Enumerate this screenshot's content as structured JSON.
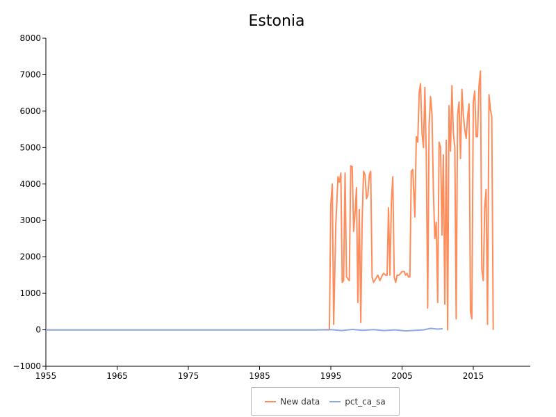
{
  "chart_data": {
    "type": "line",
    "title": "Estonia",
    "xlabel": "",
    "ylabel": "",
    "xlim": [
      1955,
      2023
    ],
    "ylim": [
      -1000,
      8000
    ],
    "x_ticks": [
      "1955",
      "1965",
      "1975",
      "1985",
      "1995",
      "2005",
      "2015"
    ],
    "y_ticks": [
      "8000",
      "7000",
      "6000",
      "5000",
      "4000",
      "3000",
      "2000",
      "1000",
      "0",
      "−1000"
    ],
    "grid": false,
    "legend_position": "bottom",
    "series": [
      {
        "name": "New data",
        "color": "#ff8c5a",
        "points": [
          [
            1955,
            0
          ],
          [
            1970,
            0
          ],
          [
            1985,
            0
          ],
          [
            1994.8,
            0
          ],
          [
            1995.0,
            3450
          ],
          [
            1995.2,
            4000
          ],
          [
            1995.4,
            150
          ],
          [
            1995.7,
            2900
          ],
          [
            1996.0,
            4200
          ],
          [
            1996.2,
            4050
          ],
          [
            1996.4,
            4300
          ],
          [
            1996.6,
            1300
          ],
          [
            1996.8,
            1350
          ],
          [
            1997.0,
            4300
          ],
          [
            1997.2,
            1450
          ],
          [
            1997.4,
            1400
          ],
          [
            1997.6,
            1350
          ],
          [
            1997.8,
            4500
          ],
          [
            1998.0,
            4480
          ],
          [
            1998.2,
            2700
          ],
          [
            1998.4,
            3200
          ],
          [
            1998.6,
            3900
          ],
          [
            1998.8,
            750
          ],
          [
            1999.0,
            3300
          ],
          [
            1999.2,
            200
          ],
          [
            1999.4,
            3000
          ],
          [
            1999.6,
            4350
          ],
          [
            1999.8,
            4250
          ],
          [
            2000.0,
            3600
          ],
          [
            2000.2,
            3700
          ],
          [
            2000.4,
            4250
          ],
          [
            2000.6,
            4350
          ],
          [
            2000.8,
            1450
          ],
          [
            2001.0,
            1300
          ],
          [
            2001.3,
            1400
          ],
          [
            2001.6,
            1500
          ],
          [
            2001.9,
            1350
          ],
          [
            2002.1,
            1450
          ],
          [
            2002.4,
            1550
          ],
          [
            2002.7,
            1500
          ],
          [
            2002.9,
            1500
          ],
          [
            2003.1,
            3350
          ],
          [
            2003.3,
            1500
          ],
          [
            2003.5,
            3500
          ],
          [
            2003.7,
            4200
          ],
          [
            2003.9,
            1450
          ],
          [
            2004.1,
            1300
          ],
          [
            2004.3,
            1500
          ],
          [
            2004.6,
            1500
          ],
          [
            2004.8,
            1550
          ],
          [
            2005.0,
            1600
          ],
          [
            2005.3,
            1600
          ],
          [
            2005.5,
            1500
          ],
          [
            2005.7,
            1550
          ],
          [
            2005.9,
            1450
          ],
          [
            2006.1,
            1450
          ],
          [
            2006.3,
            4350
          ],
          [
            2006.5,
            4400
          ],
          [
            2006.8,
            3100
          ],
          [
            2007.0,
            5300
          ],
          [
            2007.2,
            5150
          ],
          [
            2007.4,
            6500
          ],
          [
            2007.6,
            6750
          ],
          [
            2007.8,
            5400
          ],
          [
            2008.0,
            5000
          ],
          [
            2008.2,
            6650
          ],
          [
            2008.4,
            4800
          ],
          [
            2008.6,
            600
          ],
          [
            2008.8,
            5600
          ],
          [
            2009.0,
            6400
          ],
          [
            2009.2,
            5900
          ],
          [
            2009.4,
            3800
          ],
          [
            2009.6,
            2500
          ],
          [
            2009.8,
            2950
          ],
          [
            2010.0,
            750
          ],
          [
            2010.2,
            5150
          ],
          [
            2010.4,
            5000
          ],
          [
            2010.6,
            2600
          ],
          [
            2010.8,
            4800
          ],
          [
            2011.0,
            700
          ],
          [
            2011.2,
            5200
          ],
          [
            2011.4,
            0
          ],
          [
            2011.6,
            6150
          ],
          [
            2011.8,
            4900
          ],
          [
            2012.0,
            6700
          ],
          [
            2012.2,
            5400
          ],
          [
            2012.4,
            5000
          ],
          [
            2012.6,
            300
          ],
          [
            2012.8,
            5900
          ],
          [
            2013.0,
            6250
          ],
          [
            2013.2,
            4700
          ],
          [
            2013.4,
            6600
          ],
          [
            2013.6,
            5900
          ],
          [
            2013.8,
            5500
          ],
          [
            2014.0,
            5250
          ],
          [
            2014.2,
            5850
          ],
          [
            2014.4,
            6200
          ],
          [
            2014.6,
            500
          ],
          [
            2014.8,
            300
          ],
          [
            2015.0,
            6250
          ],
          [
            2015.2,
            6550
          ],
          [
            2015.4,
            5300
          ],
          [
            2015.6,
            5300
          ],
          [
            2015.8,
            6700
          ],
          [
            2016.0,
            7100
          ],
          [
            2016.2,
            1650
          ],
          [
            2016.4,
            1350
          ],
          [
            2016.6,
            3350
          ],
          [
            2016.8,
            3850
          ],
          [
            2017.0,
            150
          ],
          [
            2017.2,
            6450
          ],
          [
            2017.4,
            6050
          ],
          [
            2017.6,
            5850
          ],
          [
            2017.8,
            0
          ]
        ]
      },
      {
        "name": "pct_ca_sa",
        "color": "#8ea9db",
        "points": [
          [
            1955,
            0
          ],
          [
            1970,
            0
          ],
          [
            1993.0,
            0
          ],
          [
            1995.0,
            5
          ],
          [
            1996.5,
            -20
          ],
          [
            1998.0,
            10
          ],
          [
            1999.5,
            -15
          ],
          [
            2001.0,
            5
          ],
          [
            2002.5,
            -20
          ],
          [
            2004.0,
            0
          ],
          [
            2005.5,
            -30
          ],
          [
            2007.0,
            -15
          ],
          [
            2008.0,
            0
          ],
          [
            2009.0,
            40
          ],
          [
            2010.0,
            20
          ],
          [
            2010.7,
            30
          ]
        ]
      }
    ]
  }
}
